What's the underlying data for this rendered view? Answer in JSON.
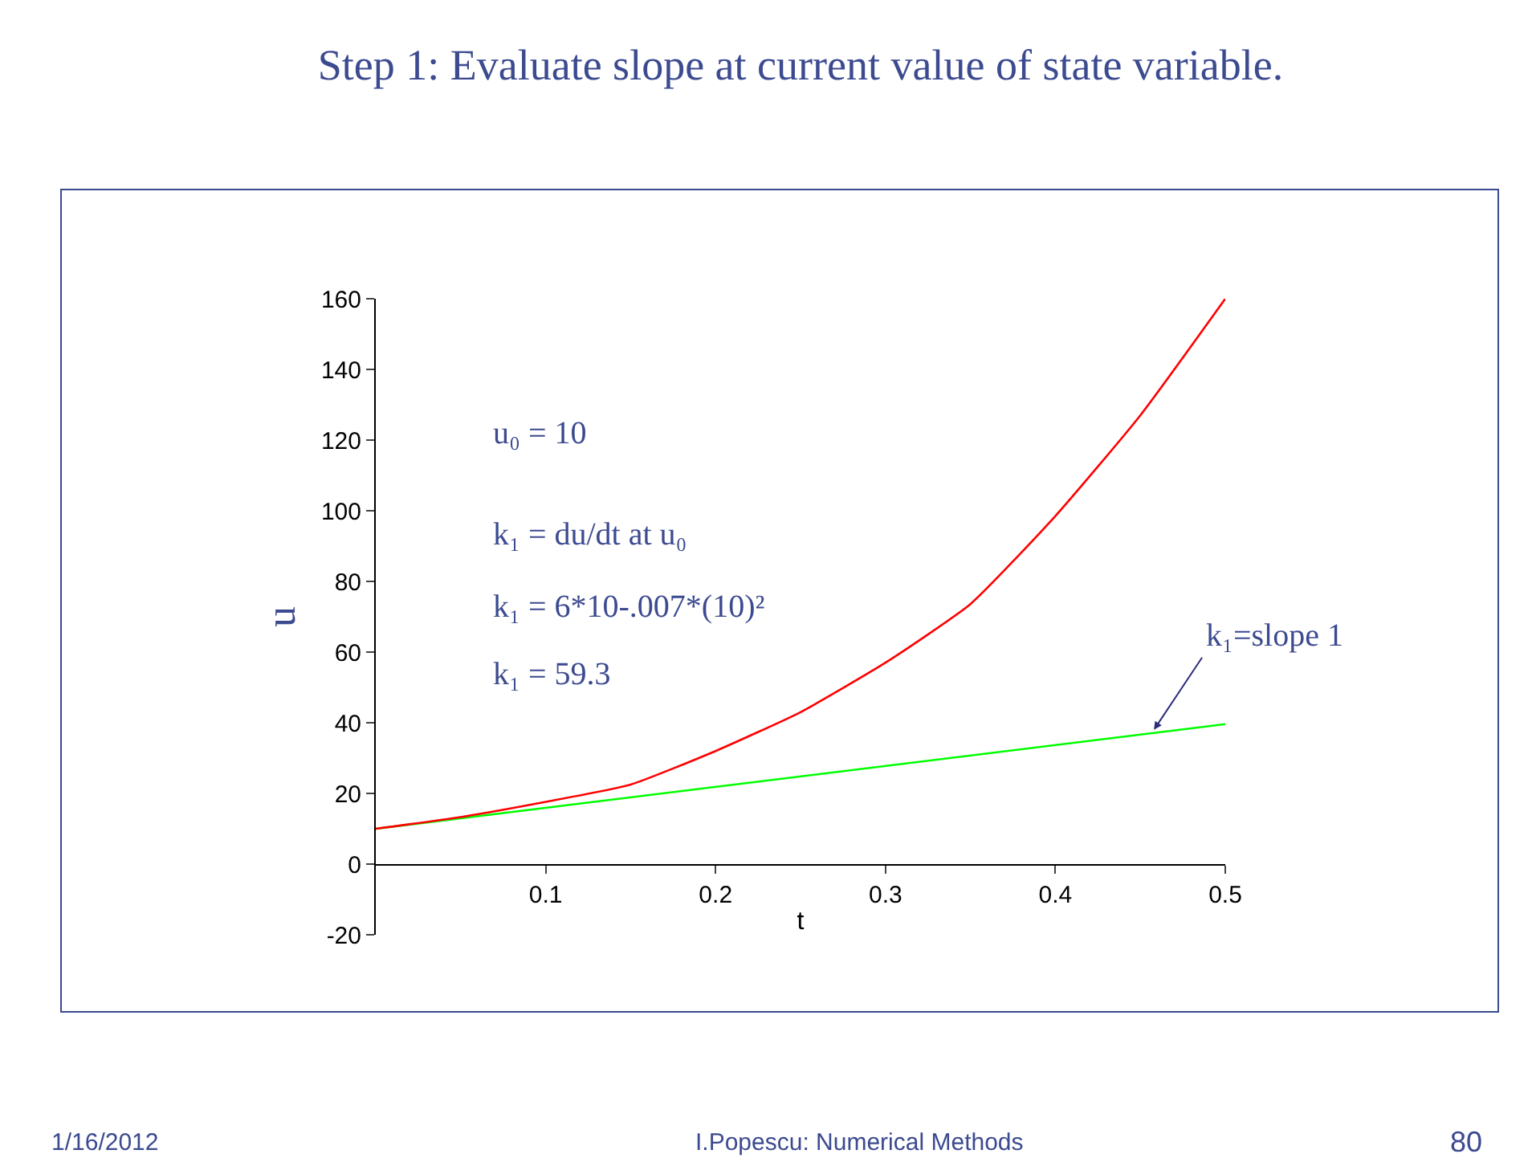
{
  "chart_data": {
    "type": "line",
    "title": "Step 1: Evaluate slope at current value of state variable.",
    "xlabel": "t",
    "ylabel": "u",
    "x": [
      0,
      0.05,
      0.1,
      0.15,
      0.2,
      0.25,
      0.3,
      0.35,
      0.4,
      0.45,
      0.5
    ],
    "series": [
      {
        "color": "#ff0000",
        "values": [
          10,
          13.3,
          17.6,
          22.5,
          32,
          43,
          57,
          73.6,
          98.5,
          127,
          160
        ]
      },
      {
        "color": "#00ff00",
        "x": [
          0,
          0.5
        ],
        "values": [
          10,
          39.6
        ]
      }
    ],
    "xlim": [
      0,
      0.5
    ],
    "xticks": [
      0.1,
      0.2,
      0.3,
      0.4,
      0.5
    ],
    "ylim": [
      -20,
      160
    ],
    "yticks": [
      -20,
      0,
      20,
      40,
      60,
      80,
      100,
      120,
      140,
      160
    ],
    "annotations": [
      "u₀ = 10",
      "k₁ = du/dt at u₀",
      "k₁ = 6*10-.007*(10)²",
      "k₁ = 59.3",
      {
        "text": "k₁=slope 1",
        "x": 0.458,
        "y": 38
      },
      "1/16/2012",
      "I.Popescu: Numerical Methods",
      "80"
    ]
  }
}
